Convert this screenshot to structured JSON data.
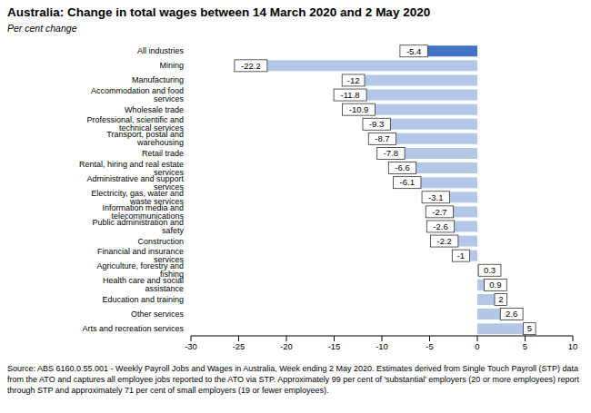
{
  "chart_data": {
    "type": "bar",
    "orientation": "horizontal",
    "title": "Australia: Change in total wages between 14 March 2020 and 2 May 2020",
    "subtitle": "Per cent change",
    "source": "Source: ABS 6160.0.55.001 - Weekly Payroll Jobs and Wages in Australia, Week ending 2 May 2020.  Estimates derived from Single Touch Payroll (STP) data from the ATO and captures all employee jobs reported to the ATO via STP.  Approximately 99 per cent of 'substantial' employers (20 or more employees) report through STP and approximately 71 per cent of small employers (19 or fewer employees).",
    "categories": [
      "All industries",
      "Mining",
      "Manufacturing",
      "Accommodation and food services",
      "Wholesale trade",
      "Professional, scientific and technical services",
      "Transport, postal and warehousing",
      "Retail trade",
      "Rental, hiring and real estate services",
      "Administrative and support services",
      "Electricity, gas, water and waste services",
      "Information media and telecommunications",
      "Public administration and safety",
      "Construction",
      "Financial and insurance services",
      "Agriculture, forestry and fishing",
      "Health care and social assistance",
      "Education and training",
      "Other services",
      "Arts and recreation services"
    ],
    "values": [
      -5.4,
      -22.2,
      -12,
      -11.8,
      -10.9,
      -9.3,
      -8.7,
      -7.8,
      -6.6,
      -6.1,
      -3.1,
      -2.7,
      -2.6,
      -2.2,
      -1,
      0.3,
      0.9,
      2,
      2.6,
      5
    ],
    "colors": [
      "#4472c4",
      "#b4c7e7",
      "#b4c7e7",
      "#b4c7e7",
      "#b4c7e7",
      "#b4c7e7",
      "#b4c7e7",
      "#b4c7e7",
      "#b4c7e7",
      "#b4c7e7",
      "#b4c7e7",
      "#b4c7e7",
      "#b4c7e7",
      "#b4c7e7",
      "#b4c7e7",
      "#b4c7e7",
      "#b4c7e7",
      "#b4c7e7",
      "#b4c7e7",
      "#b4c7e7"
    ],
    "xlim": [
      -30,
      10
    ],
    "xticks": [
      -30,
      -25,
      -20,
      -15,
      -10,
      -5,
      0,
      5,
      10
    ],
    "grid": false,
    "data_labels": true
  }
}
